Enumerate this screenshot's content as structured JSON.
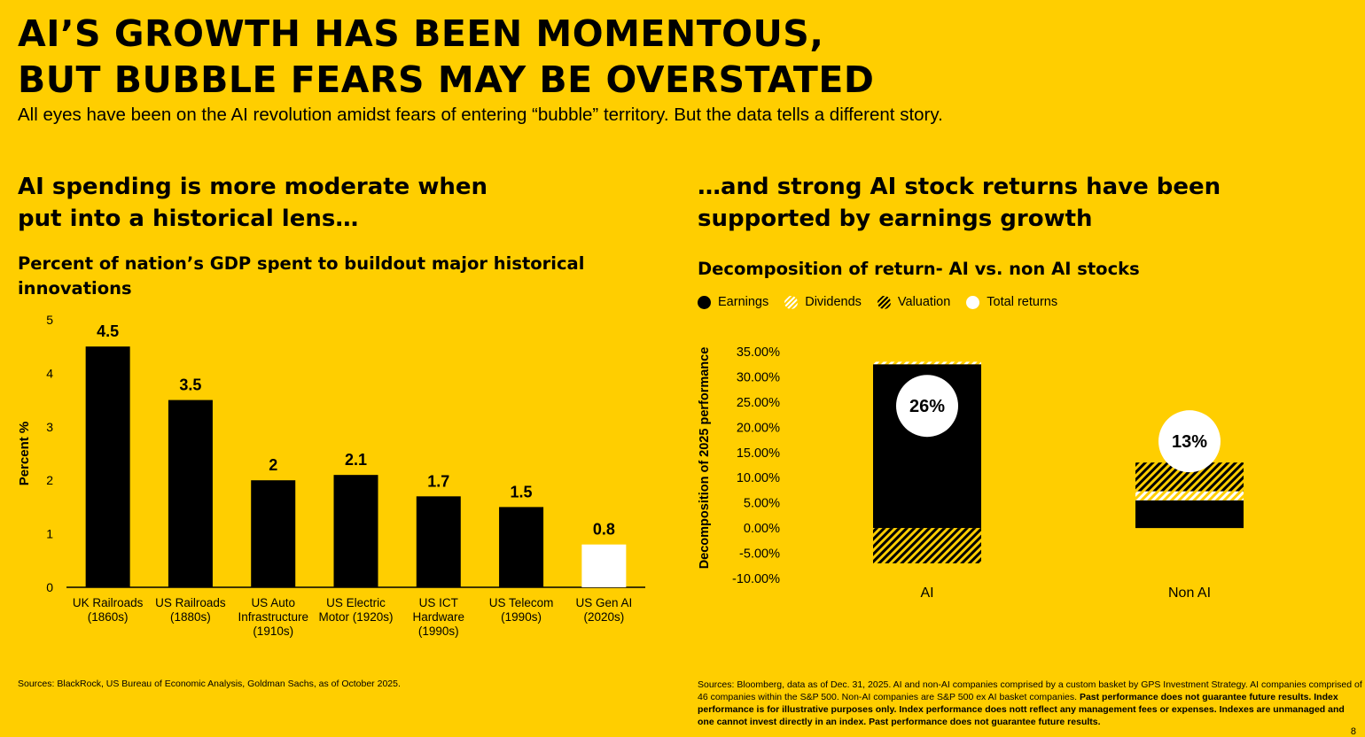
{
  "header": {
    "title_line1": "AI’S GROWTH HAS BEEN MOMENTOUS,",
    "title_line2": "BUT BUBBLE FEARS MAY BE OVERSTATED",
    "subtitle": "All eyes have been on the AI revolution amidst fears of entering “bubble” territory. But the data tells a different story."
  },
  "left": {
    "section_line1": "AI spending is more moderate when",
    "section_line2": "put into a historical lens…",
    "chart_title_line1": "Percent of nation’s GDP spent to buildout major historical",
    "chart_title_line2": "innovations",
    "source": "Sources: BlackRock, US Bureau of Economic Analysis, Goldman Sachs, as of October 2025."
  },
  "right": {
    "section_line1": "…and strong AI stock returns have been",
    "section_line2": "supported by earnings growth",
    "chart_title": "Decomposition of return- AI vs. non AI stocks",
    "legend": [
      "Earnings",
      "Dividends",
      "Valuation",
      "Total returns"
    ],
    "source_plain": "Sources:  Bloomberg, data as of Dec. 31, 2025. AI and non-AI companies comprised by a custom basket by GPS Investment Strategy. AI companies comprised of 46 companies within the S&P 500. Non-AI companies are S&P 500 ex AI basket companies. ",
    "source_bold": "Past performance does not guarantee future results. Index performance is for illustrative purposes only. Index performance does nott reflect any management fees or expenses. Indexes are unmanaged and one cannot invest directly in an index. Past performance does not guarantee future results."
  },
  "page_number": "8",
  "colors": {
    "background": "#FFCE00",
    "bar": "#000000",
    "highlight": "#FFFFFF"
  },
  "chart_data": [
    {
      "type": "bar",
      "title": "Percent of nation’s GDP spent to buildout major historical innovations",
      "ylabel": "Percent %",
      "ylim": [
        0,
        5
      ],
      "yticks": [
        "0",
        "1",
        "2",
        "3",
        "4",
        "5"
      ],
      "categories": [
        [
          "UK Railroads",
          "(1860s)"
        ],
        [
          "US Railroads",
          "(1880s)"
        ],
        [
          "US Auto",
          "Infrastructure",
          "(1910s)"
        ],
        [
          "US Electric",
          "Motor (1920s)"
        ],
        [
          "US ICT",
          "Hardware",
          "(1990s)"
        ],
        [
          "US Telecom",
          "(1990s)"
        ],
        [
          "US Gen AI",
          "(2020s)"
        ]
      ],
      "values": [
        4.5,
        3.5,
        2,
        2.1,
        1.7,
        1.5,
        0.8
      ],
      "value_labels": [
        "4.5",
        "3.5",
        "2",
        "2.1",
        "1.7",
        "1.5",
        "0.8"
      ],
      "highlight_index": 6,
      "grid": false
    },
    {
      "type": "bar",
      "stacked": true,
      "title": "Decomposition of return- AI vs. non AI stocks",
      "ylabel": "Decomposition of 2025 performance",
      "ylim": [
        -10,
        35
      ],
      "yticks": [
        "-10.00%",
        "-5.00%",
        "0.00%",
        "5.00%",
        "10.00%",
        "15.00%",
        "20.00%",
        "25.00%",
        "30.00%",
        "35.00%"
      ],
      "categories": [
        "AI",
        "Non AI"
      ],
      "series": [
        {
          "name": "Earnings",
          "values": [
            32.5,
            5.5
          ]
        },
        {
          "name": "Dividends",
          "values": [
            0.5,
            1.8
          ]
        },
        {
          "name": "Valuation",
          "values": [
            -7,
            5.7
          ]
        }
      ],
      "total_returns": [
        26,
        13
      ],
      "total_labels": [
        "26%",
        "13%"
      ],
      "grid": false
    }
  ]
}
